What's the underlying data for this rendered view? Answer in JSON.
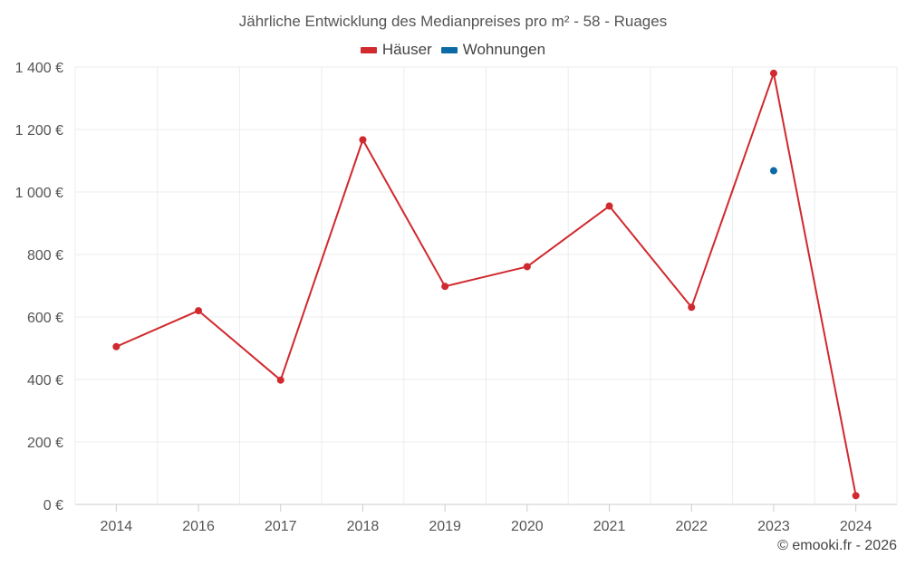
{
  "chart_data": {
    "type": "line",
    "title": "Jährliche Entwicklung des Medianpreises pro m² - 58 - Ruages",
    "categories": [
      "2014",
      "2016",
      "2017",
      "2018",
      "2019",
      "2020",
      "2021",
      "2022",
      "2023",
      "2024"
    ],
    "series": [
      {
        "name": "Häuser",
        "color": "#d0292e",
        "values": [
          505,
          620,
          398,
          1167,
          698,
          761,
          955,
          631,
          1380,
          28
        ]
      },
      {
        "name": "Wohnungen",
        "color": "#0c6aa6",
        "values": [
          null,
          null,
          null,
          null,
          null,
          null,
          null,
          null,
          1068,
          null
        ]
      }
    ],
    "yticks": [
      "0 €",
      "200 €",
      "400 €",
      "600 €",
      "800 €",
      "1 000 €",
      "1 200 €",
      "1 400 €"
    ],
    "ylim": [
      0,
      1400
    ],
    "grid": true,
    "legend_position": "top-center"
  },
  "credit": "© emooki.fr - 2026"
}
